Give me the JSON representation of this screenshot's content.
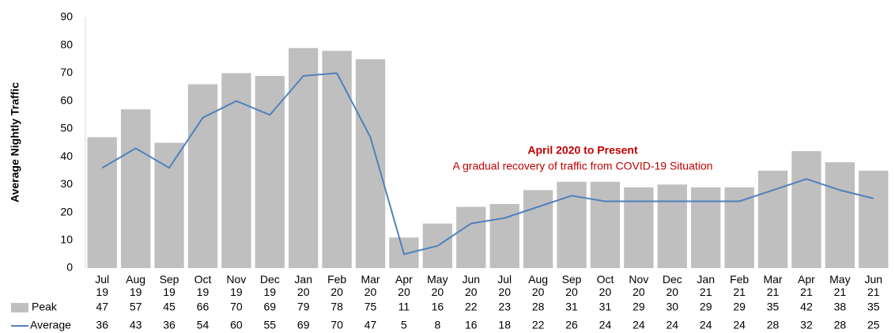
{
  "chart_data": {
    "type": "bar_line",
    "y_label": "Average Nightly Traffic",
    "annotations": [
      "April 2020 to Present",
      "A gradual recovery of traffic from COVID-19 Situation"
    ],
    "categories": [
      "Jul 19",
      "Aug 19",
      "Sep 19",
      "Oct 19",
      "Nov 19",
      "Dec 19",
      "Jan 20",
      "Feb 20",
      "Mar 20",
      "Apr 20",
      "May 20",
      "Jun 20",
      "Jul 20",
      "Aug 20",
      "Sep 20",
      "Oct 20",
      "Nov 20",
      "Dec 20",
      "Jan 21",
      "Feb 21",
      "Mar 21",
      "Apr 21",
      "May 21",
      "Jun 21"
    ],
    "series": [
      {
        "name": "Peak",
        "type": "bar",
        "color": "#bfbfbf",
        "values": [
          47,
          57,
          45,
          66,
          70,
          69,
          79,
          78,
          75,
          11,
          16,
          22,
          23,
          28,
          31,
          31,
          29,
          30,
          29,
          29,
          35,
          42,
          38,
          35
        ]
      },
      {
        "name": "Average",
        "type": "line",
        "color": "#4f81bd",
        "values": [
          36,
          43,
          36,
          54,
          60,
          55,
          69,
          70,
          47,
          5,
          8,
          16,
          18,
          22,
          26,
          24,
          24,
          24,
          24,
          24,
          28,
          32,
          28,
          25
        ]
      }
    ],
    "ylim": [
      0,
      90
    ],
    "yticks": [
      0,
      10,
      20,
      30,
      40,
      50,
      60,
      70,
      80,
      90
    ],
    "grid": false
  }
}
